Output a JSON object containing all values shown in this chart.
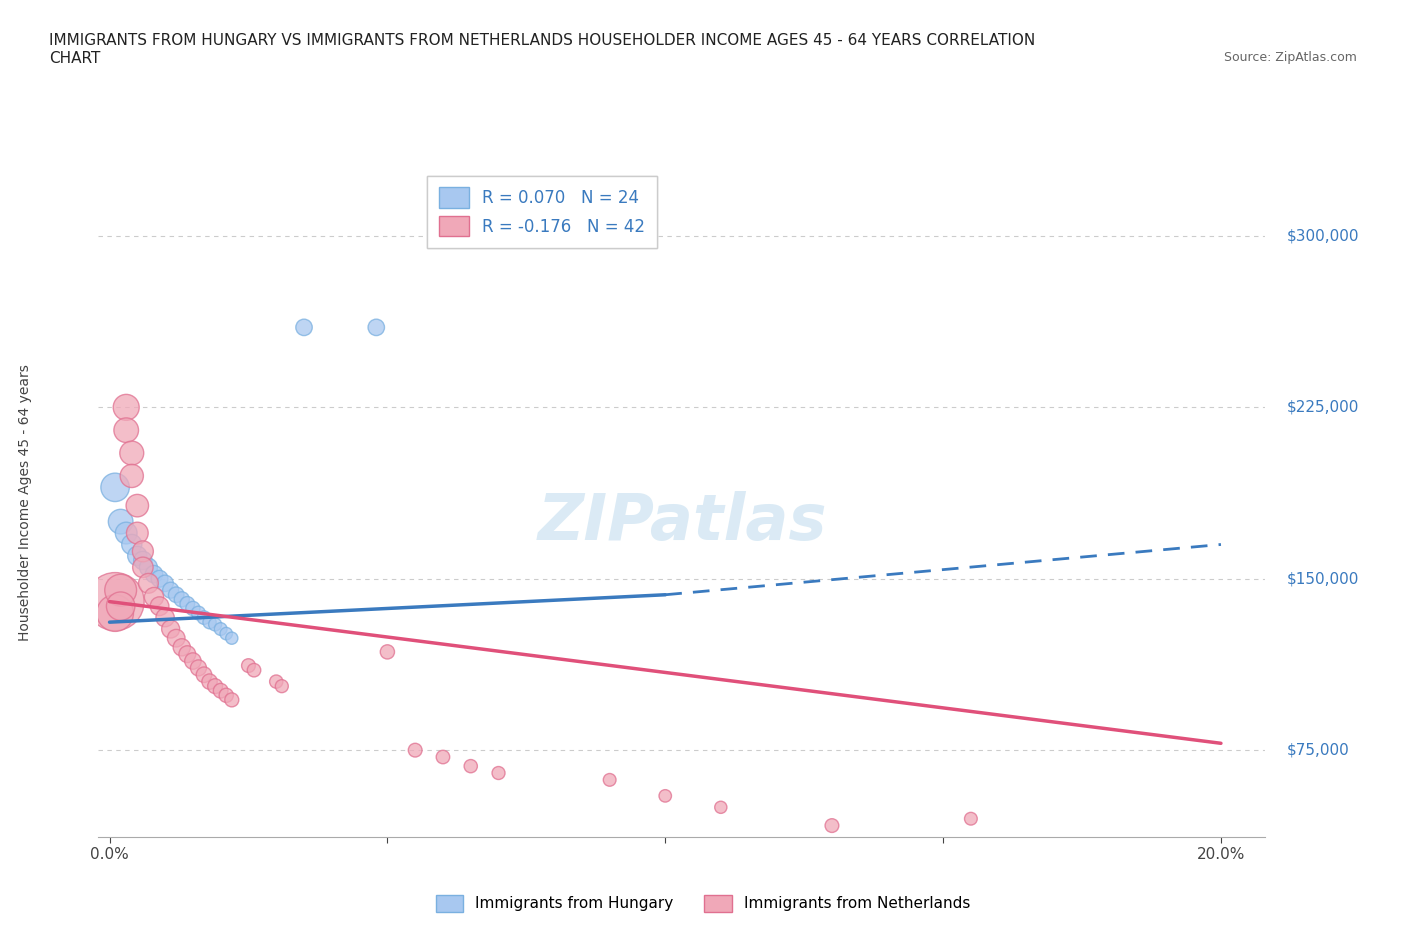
{
  "title_line1": "IMMIGRANTS FROM HUNGARY VS IMMIGRANTS FROM NETHERLANDS HOUSEHOLDER INCOME AGES 45 - 64 YEARS CORRELATION",
  "title_line2": "CHART",
  "source": "Source: ZipAtlas.com",
  "ylabel": "Householder Income Ages 45 - 64 years",
  "xlim": [
    -0.002,
    0.208
  ],
  "ylim": [
    37000,
    330000
  ],
  "xticks": [
    0.0,
    0.05,
    0.1,
    0.15,
    0.2
  ],
  "xticklabels": [
    "0.0%",
    "",
    "",
    "",
    "20.0%"
  ],
  "ytick_positions": [
    75000,
    150000,
    225000,
    300000
  ],
  "ytick_labels": [
    "$75,000",
    "$150,000",
    "$225,000",
    "$300,000"
  ],
  "hungary_color": "#a8c8f0",
  "hungary_edge_color": "#7ab0e0",
  "netherlands_color": "#f0a8b8",
  "netherlands_edge_color": "#e07090",
  "hungary_trend_color": "#3a7abf",
  "netherlands_trend_color": "#e0507a",
  "legend_label_hungary": "R = 0.070   N = 24",
  "legend_label_netherlands": "R = -0.176   N = 42",
  "legend_label_hungary_bottom": "Immigrants from Hungary",
  "legend_label_netherlands_bottom": "Immigrants from Netherlands",
  "watermark": "ZIPatlas",
  "background_color": "#ffffff",
  "grid_color": "#cccccc",
  "hungary_points": [
    [
      0.001,
      190000,
      120
    ],
    [
      0.002,
      175000,
      90
    ],
    [
      0.003,
      170000,
      70
    ],
    [
      0.004,
      165000,
      60
    ],
    [
      0.005,
      160000,
      55
    ],
    [
      0.006,
      158000,
      50
    ],
    [
      0.007,
      155000,
      48
    ],
    [
      0.008,
      152000,
      45
    ],
    [
      0.009,
      150000,
      42
    ],
    [
      0.01,
      148000,
      40
    ],
    [
      0.011,
      145000,
      38
    ],
    [
      0.012,
      143000,
      36
    ],
    [
      0.013,
      141000,
      34
    ],
    [
      0.014,
      139000,
      32
    ],
    [
      0.015,
      137000,
      30
    ],
    [
      0.016,
      135000,
      28
    ],
    [
      0.017,
      133000,
      27
    ],
    [
      0.018,
      131000,
      26
    ],
    [
      0.019,
      130000,
      25
    ],
    [
      0.02,
      128000,
      24
    ],
    [
      0.021,
      126000,
      23
    ],
    [
      0.022,
      124000,
      22
    ],
    [
      0.035,
      260000,
      40
    ],
    [
      0.048,
      260000,
      40
    ]
  ],
  "netherlands_points": [
    [
      0.001,
      140000,
      500
    ],
    [
      0.001,
      135000,
      200
    ],
    [
      0.002,
      145000,
      150
    ],
    [
      0.002,
      138000,
      120
    ],
    [
      0.003,
      225000,
      100
    ],
    [
      0.003,
      215000,
      90
    ],
    [
      0.004,
      205000,
      85
    ],
    [
      0.004,
      195000,
      80
    ],
    [
      0.005,
      182000,
      75
    ],
    [
      0.005,
      170000,
      70
    ],
    [
      0.006,
      162000,
      65
    ],
    [
      0.006,
      155000,
      62
    ],
    [
      0.007,
      148000,
      58
    ],
    [
      0.008,
      142000,
      55
    ],
    [
      0.009,
      138000,
      52
    ],
    [
      0.01,
      133000,
      50
    ],
    [
      0.011,
      128000,
      48
    ],
    [
      0.012,
      124000,
      46
    ],
    [
      0.013,
      120000,
      44
    ],
    [
      0.014,
      117000,
      42
    ],
    [
      0.015,
      114000,
      40
    ],
    [
      0.016,
      111000,
      38
    ],
    [
      0.017,
      108000,
      36
    ],
    [
      0.018,
      105000,
      35
    ],
    [
      0.019,
      103000,
      33
    ],
    [
      0.02,
      101000,
      32
    ],
    [
      0.021,
      99000,
      30
    ],
    [
      0.022,
      97000,
      29
    ],
    [
      0.025,
      112000,
      28
    ],
    [
      0.026,
      110000,
      27
    ],
    [
      0.03,
      105000,
      26
    ],
    [
      0.031,
      103000,
      25
    ],
    [
      0.05,
      118000,
      30
    ],
    [
      0.055,
      75000,
      28
    ],
    [
      0.06,
      72000,
      27
    ],
    [
      0.065,
      68000,
      26
    ],
    [
      0.07,
      65000,
      25
    ],
    [
      0.09,
      62000,
      24
    ],
    [
      0.1,
      55000,
      23
    ],
    [
      0.11,
      50000,
      22
    ],
    [
      0.13,
      42000,
      28
    ],
    [
      0.155,
      45000,
      24
    ]
  ]
}
